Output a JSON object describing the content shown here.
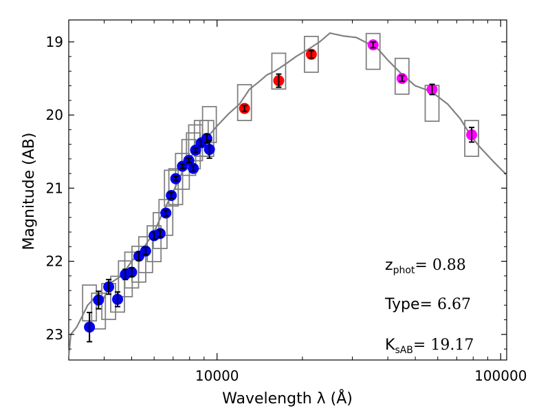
{
  "chart_data": {
    "type": "scatter",
    "xlabel": "Wavelength  λ (Å)",
    "ylabel": "Magnitude (AB)",
    "xscale": "log",
    "xlim": [
      3000,
      105000
    ],
    "ylim": [
      23.35,
      18.7
    ],
    "x_ticks": [
      10000,
      100000
    ],
    "x_tick_labels": [
      "10000",
      "100000"
    ],
    "y_ticks": [
      19,
      20,
      21,
      22,
      23
    ],
    "y_tick_labels": [
      "19",
      "20",
      "21",
      "22",
      "23"
    ],
    "colors": {
      "optical": "#0000ee",
      "nir": "#ff0000",
      "irac": "#ff00ff",
      "model": "#808080",
      "box": "#808080",
      "errorbar": "#000000"
    },
    "series": [
      {
        "name": "optical",
        "points": [
          {
            "wavelength": 3550,
            "mag": 22.9,
            "err": 0.2
          },
          {
            "wavelength": 3820,
            "mag": 22.53,
            "err": 0.12
          },
          {
            "wavelength": 4150,
            "mag": 22.35,
            "err": 0.1
          },
          {
            "wavelength": 4460,
            "mag": 22.52,
            "err": 0.1
          },
          {
            "wavelength": 4750,
            "mag": 22.18,
            "err": 0.07
          },
          {
            "wavelength": 5000,
            "mag": 22.15,
            "err": 0.06
          },
          {
            "wavelength": 5300,
            "mag": 21.93,
            "err": 0.06
          },
          {
            "wavelength": 5600,
            "mag": 21.86,
            "err": 0.05
          },
          {
            "wavelength": 6000,
            "mag": 21.65,
            "err": 0.05
          },
          {
            "wavelength": 6300,
            "mag": 21.62,
            "err": 0.05
          },
          {
            "wavelength": 6600,
            "mag": 21.34,
            "err": 0.04
          },
          {
            "wavelength": 6900,
            "mag": 21.1,
            "err": 0.04
          },
          {
            "wavelength": 7150,
            "mag": 20.87,
            "err": 0.03
          },
          {
            "wavelength": 7550,
            "mag": 20.7,
            "err": 0.03
          },
          {
            "wavelength": 7950,
            "mag": 20.62,
            "err": 0.03
          },
          {
            "wavelength": 8250,
            "mag": 20.73,
            "err": 0.04
          },
          {
            "wavelength": 8400,
            "mag": 20.48,
            "err": 0.03
          },
          {
            "wavelength": 8800,
            "mag": 20.38,
            "err": 0.04
          },
          {
            "wavelength": 9200,
            "mag": 20.32,
            "err": 0.06
          },
          {
            "wavelength": 9400,
            "mag": 20.47,
            "err": 0.12
          }
        ]
      },
      {
        "name": "nir",
        "points": [
          {
            "wavelength": 12500,
            "mag": 19.91,
            "err": 0.04
          },
          {
            "wavelength": 16500,
            "mag": 19.53,
            "err": 0.09
          },
          {
            "wavelength": 21500,
            "mag": 19.17,
            "err": 0.05
          }
        ]
      },
      {
        "name": "irac",
        "points": [
          {
            "wavelength": 35500,
            "mag": 19.04,
            "err": 0.04
          },
          {
            "wavelength": 44900,
            "mag": 19.5,
            "err": 0.04
          },
          {
            "wavelength": 57300,
            "mag": 19.65,
            "err": 0.07
          },
          {
            "wavelength": 79000,
            "mag": 20.27,
            "err": 0.1
          }
        ]
      }
    ],
    "boxes": [
      {
        "wavelength": 3550,
        "mag": 22.57
      },
      {
        "wavelength": 3820,
        "mag": 22.68
      },
      {
        "wavelength": 4150,
        "mag": 22.55
      },
      {
        "wavelength": 4460,
        "mag": 22.45
      },
      {
        "wavelength": 4750,
        "mag": 22.24
      },
      {
        "wavelength": 5000,
        "mag": 22.12
      },
      {
        "wavelength": 5300,
        "mag": 22.04
      },
      {
        "wavelength": 5600,
        "mag": 21.91
      },
      {
        "wavelength": 6000,
        "mag": 21.76
      },
      {
        "wavelength": 6300,
        "mag": 21.58
      },
      {
        "wavelength": 6600,
        "mag": 21.4
      },
      {
        "wavelength": 6900,
        "mag": 21.0
      },
      {
        "wavelength": 7150,
        "mag": 20.98
      },
      {
        "wavelength": 7550,
        "mag": 20.77
      },
      {
        "wavelength": 7950,
        "mag": 20.58
      },
      {
        "wavelength": 8250,
        "mag": 20.49
      },
      {
        "wavelength": 8400,
        "mag": 20.38
      },
      {
        "wavelength": 8800,
        "mag": 20.32
      },
      {
        "wavelength": 9200,
        "mag": 20.32
      },
      {
        "wavelength": 9400,
        "mag": 20.13
      },
      {
        "wavelength": 12500,
        "mag": 19.83
      },
      {
        "wavelength": 16500,
        "mag": 19.4
      },
      {
        "wavelength": 21500,
        "mag": 19.17
      },
      {
        "wavelength": 35500,
        "mag": 19.13
      },
      {
        "wavelength": 44900,
        "mag": 19.47
      },
      {
        "wavelength": 57300,
        "mag": 19.84
      },
      {
        "wavelength": 79000,
        "mag": 20.32
      }
    ],
    "model_spectrum": [
      [
        3000,
        23.3
      ],
      [
        3050,
        23.0
      ],
      [
        3200,
        22.9
      ],
      [
        3500,
        22.6
      ],
      [
        3800,
        22.45
      ],
      [
        4000,
        22.5
      ],
      [
        4200,
        22.3
      ],
      [
        4600,
        22.2
      ],
      [
        5000,
        22.0
      ],
      [
        5500,
        21.82
      ],
      [
        6000,
        21.6
      ],
      [
        6500,
        21.3
      ],
      [
        7000,
        21.05
      ],
      [
        7500,
        20.8
      ],
      [
        8000,
        20.6
      ],
      [
        8500,
        20.45
      ],
      [
        9000,
        20.35
      ],
      [
        9500,
        20.25
      ],
      [
        10000,
        20.15
      ],
      [
        11000,
        19.98
      ],
      [
        12000,
        19.85
      ],
      [
        13000,
        19.65
      ],
      [
        14000,
        19.55
      ],
      [
        15000,
        19.45
      ],
      [
        16000,
        19.4
      ],
      [
        17500,
        19.3
      ],
      [
        19000,
        19.2
      ],
      [
        21000,
        19.1
      ],
      [
        23000,
        19.0
      ],
      [
        25000,
        18.88
      ],
      [
        28000,
        18.92
      ],
      [
        31000,
        18.94
      ],
      [
        34000,
        19.02
      ],
      [
        37000,
        19.1
      ],
      [
        40000,
        19.25
      ],
      [
        45000,
        19.45
      ],
      [
        50000,
        19.6
      ],
      [
        57000,
        19.68
      ],
      [
        65000,
        19.85
      ],
      [
        72000,
        20.05
      ],
      [
        79000,
        20.3
      ],
      [
        85000,
        20.45
      ],
      [
        95000,
        20.65
      ],
      [
        105000,
        20.82
      ]
    ],
    "annotations": [
      {
        "label": "z",
        "sub": "phot",
        "value": "= 0.88"
      },
      {
        "label": "Type",
        "sub": "",
        "value": "= 6.67"
      },
      {
        "label": "K",
        "sub": "sAB",
        "value": "= 19.17"
      }
    ]
  }
}
